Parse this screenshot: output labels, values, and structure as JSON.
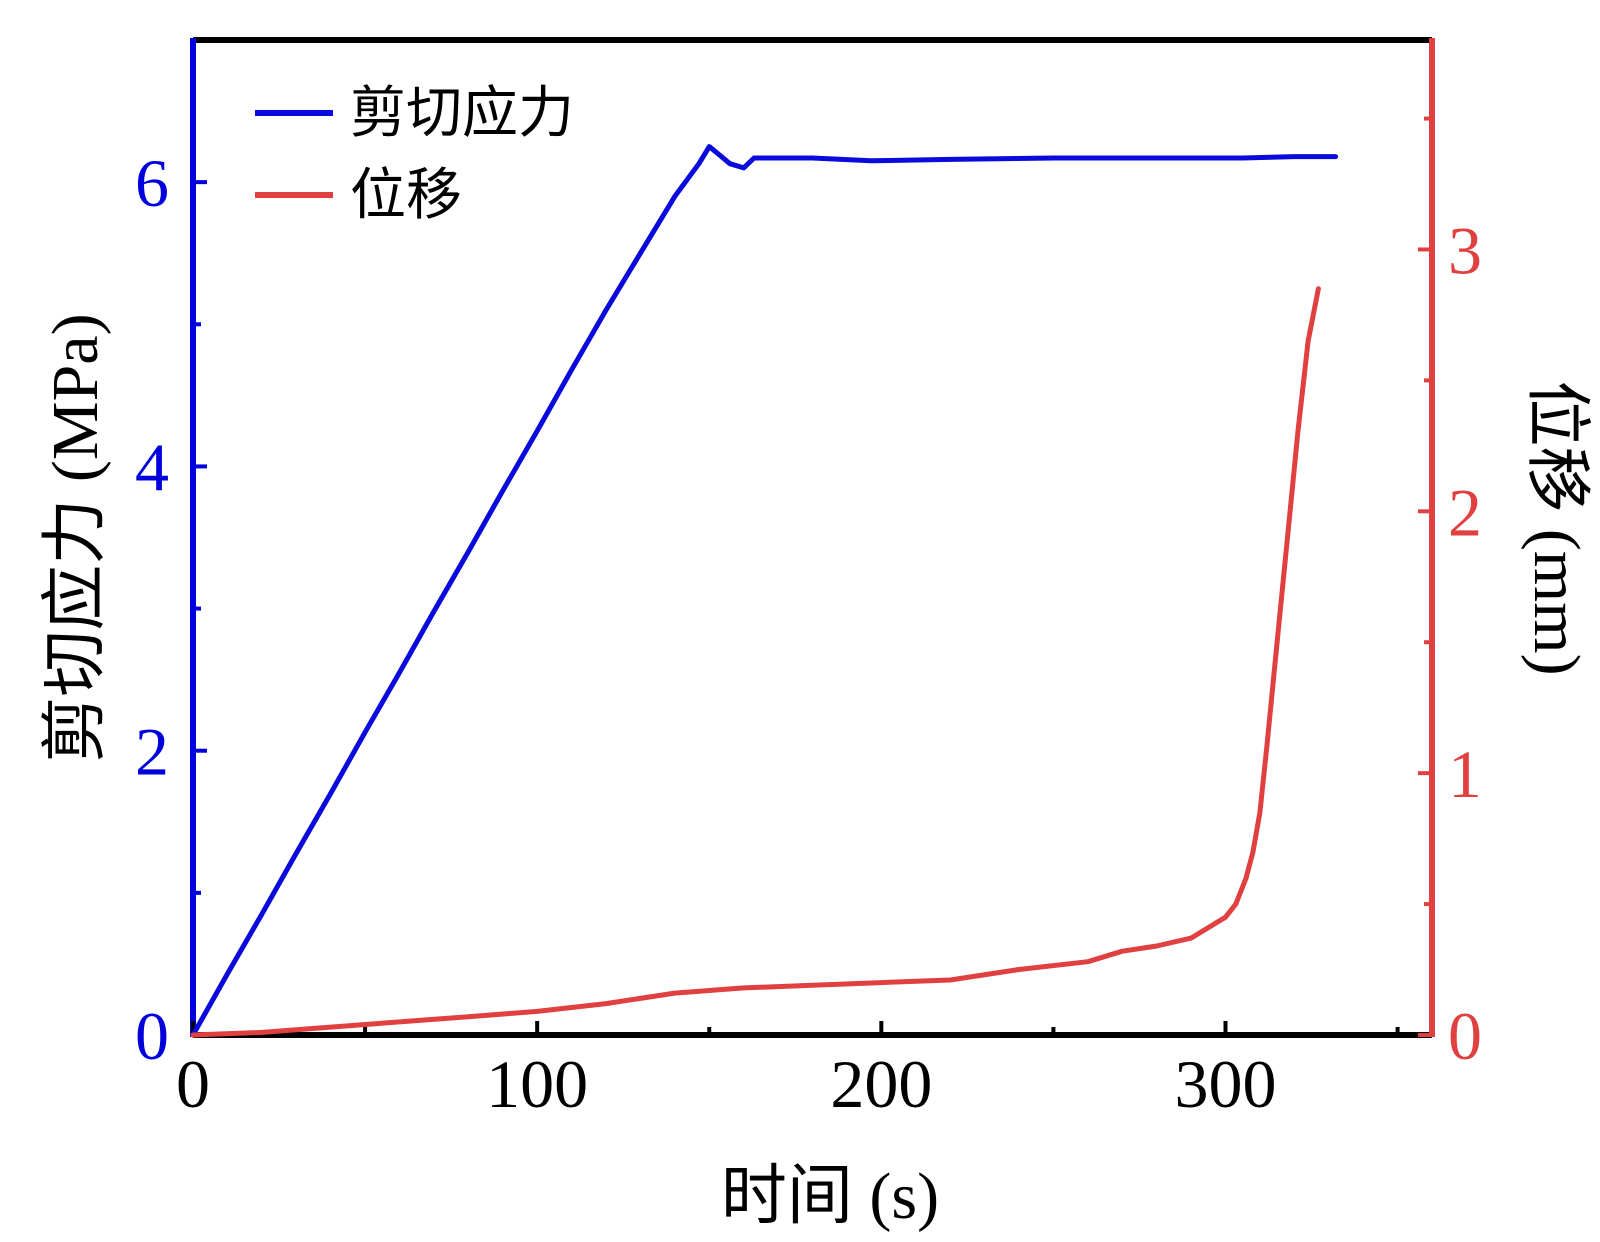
{
  "chart_data": {
    "type": "line",
    "title": "",
    "xlabel": "时间 (s)",
    "ylabel_left": "剪切应力 (MPa)",
    "ylabel_right": "位移 (mm)",
    "xlim": [
      0,
      360
    ],
    "ylim_left": [
      0,
      7
    ],
    "ylim_right": [
      0,
      3.8
    ],
    "x_ticks": [
      0,
      100,
      200,
      300
    ],
    "y_left_ticks": [
      0,
      2,
      4,
      6
    ],
    "y_right_ticks": [
      0,
      1,
      2,
      3
    ],
    "grid": false,
    "legend_placement": "top-left",
    "colors": {
      "left_axis": "#0000dd",
      "right_axis": "#e04040",
      "stress_series": "#0a0adc",
      "displacement_series": "#e04040",
      "frame": "#000000"
    },
    "series": [
      {
        "name": "剪切应力",
        "axis": "left",
        "x": [
          0,
          10,
          20,
          30,
          40,
          50,
          60,
          70,
          80,
          90,
          100,
          110,
          120,
          130,
          140,
          147,
          150,
          153,
          156,
          160,
          163,
          180,
          197,
          220,
          250,
          280,
          305,
          320,
          332
        ],
        "y": [
          0,
          0.43,
          0.85,
          1.28,
          1.7,
          2.13,
          2.55,
          2.98,
          3.4,
          3.83,
          4.25,
          4.68,
          5.1,
          5.5,
          5.9,
          6.13,
          6.25,
          6.19,
          6.13,
          6.1,
          6.17,
          6.17,
          6.15,
          6.16,
          6.17,
          6.17,
          6.17,
          6.18,
          6.18
        ]
      },
      {
        "name": "位移",
        "axis": "right",
        "x": [
          0,
          20,
          40,
          60,
          80,
          100,
          120,
          140,
          160,
          180,
          200,
          220,
          240,
          260,
          270,
          280,
          290,
          295,
          300,
          303,
          306,
          308,
          310,
          312,
          315,
          318,
          321,
          324,
          327
        ],
        "y": [
          0,
          0.01,
          0.03,
          0.05,
          0.07,
          0.09,
          0.12,
          0.16,
          0.18,
          0.19,
          0.2,
          0.21,
          0.25,
          0.28,
          0.32,
          0.34,
          0.37,
          0.41,
          0.45,
          0.5,
          0.6,
          0.7,
          0.85,
          1.1,
          1.5,
          1.9,
          2.3,
          2.65,
          2.85
        ]
      }
    ]
  }
}
